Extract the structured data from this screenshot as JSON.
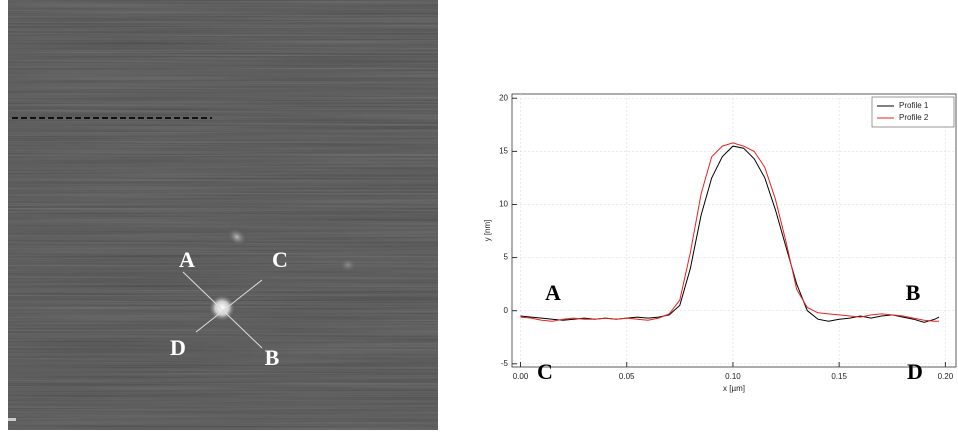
{
  "image": {
    "labels": [
      "A",
      "C",
      "D",
      "B"
    ]
  },
  "chart_data": {
    "type": "line",
    "xlabel": "x [µm]",
    "ylabel": "y [nm]",
    "x": [
      0,
      0.005,
      0.01,
      0.015,
      0.02,
      0.025,
      0.03,
      0.035,
      0.04,
      0.045,
      0.05,
      0.055,
      0.06,
      0.065,
      0.07,
      0.075,
      0.08,
      0.085,
      0.09,
      0.095,
      0.1,
      0.105,
      0.11,
      0.115,
      0.12,
      0.125,
      0.13,
      0.135,
      0.14,
      0.145,
      0.15,
      0.155,
      0.16,
      0.165,
      0.17,
      0.175,
      0.18,
      0.185,
      0.19,
      0.195,
      0.197
    ],
    "series": [
      {
        "name": "Profile 1",
        "color": "#000000",
        "values": [
          -0.5,
          -0.6,
          -0.7,
          -0.8,
          -0.9,
          -0.8,
          -0.7,
          -0.8,
          -0.7,
          -0.8,
          -0.7,
          -0.6,
          -0.7,
          -0.6,
          -0.4,
          0.5,
          4,
          9,
          12.5,
          14.5,
          15.5,
          15.3,
          14.3,
          12.5,
          9.5,
          6,
          2.5,
          0,
          -0.8,
          -1.0,
          -0.8,
          -0.7,
          -0.5,
          -0.7,
          -0.5,
          -0.4,
          -0.6,
          -0.8,
          -1.1,
          -0.8,
          -0.6
        ]
      },
      {
        "name": "Profile 2",
        "color": "#e8231f",
        "values": [
          -0.6,
          -0.7,
          -0.9,
          -1.0,
          -0.8,
          -0.7,
          -0.8,
          -0.8,
          -0.7,
          -0.8,
          -0.7,
          -0.8,
          -0.9,
          -0.7,
          -0.3,
          1,
          5.5,
          11,
          14.5,
          15.5,
          15.8,
          15.5,
          15,
          13.5,
          10.5,
          6.5,
          2,
          0.3,
          -0.2,
          -0.3,
          -0.4,
          -0.5,
          -0.6,
          -0.4,
          -0.3,
          -0.4,
          -0.5,
          -0.7,
          -0.9,
          -1.0,
          -1.0
        ]
      }
    ],
    "xlim": [
      -0.004,
      0.205
    ],
    "ylim": [
      -5.3,
      20.4
    ],
    "xticks": [
      {
        "value": 0,
        "label": "0.00"
      },
      {
        "value": 0.05,
        "label": "0.05"
      },
      {
        "value": 0.1,
        "label": "0.10"
      },
      {
        "value": 0.15,
        "label": "0.15"
      },
      {
        "value": 0.2,
        "label": "0.20"
      }
    ],
    "yticks": [
      -5,
      0,
      5,
      10,
      15,
      20
    ],
    "grid": true,
    "legend": "upper right",
    "annotations": [
      "A",
      "B",
      "C",
      "D"
    ]
  }
}
